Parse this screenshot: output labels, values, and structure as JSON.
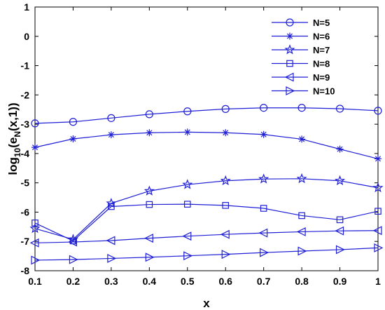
{
  "chart_data": {
    "type": "line",
    "xlabel": "x",
    "ylabel_parts": [
      "log",
      "10",
      "(e",
      "N",
      "(x,1))"
    ],
    "xlim": [
      0.1,
      1
    ],
    "ylim": [
      -8,
      1
    ],
    "x_ticks": [
      "0.1",
      "0.2",
      "0.3",
      "0.4",
      "0.5",
      "0.6",
      "0.7",
      "0.8",
      "0.9",
      "1"
    ],
    "y_ticks": [
      "1",
      "0",
      "-1",
      "-2",
      "-3",
      "-4",
      "-5",
      "-6",
      "-7",
      "-8"
    ],
    "grid": false,
    "legend_position": "top-right",
    "line_color": "#1f1fd6",
    "x": [
      0.1,
      0.2,
      0.3,
      0.4,
      0.5,
      0.6,
      0.7,
      0.8,
      0.9,
      1.0
    ],
    "series": [
      {
        "name": "N=5",
        "marker": "circle",
        "values": [
          -2.97,
          -2.92,
          -2.79,
          -2.66,
          -2.56,
          -2.48,
          -2.44,
          -2.44,
          -2.47,
          -2.54
        ]
      },
      {
        "name": "N=6",
        "marker": "asterisk",
        "values": [
          -3.79,
          -3.5,
          -3.36,
          -3.29,
          -3.27,
          -3.29,
          -3.35,
          -3.51,
          -3.85,
          -4.18
        ]
      },
      {
        "name": "N=7",
        "marker": "star",
        "values": [
          -6.56,
          -6.93,
          -5.7,
          -5.28,
          -5.06,
          -4.93,
          -4.87,
          -4.86,
          -4.93,
          -5.17
        ]
      },
      {
        "name": "N=8",
        "marker": "square",
        "values": [
          -6.37,
          -6.98,
          -5.81,
          -5.74,
          -5.73,
          -5.77,
          -5.87,
          -6.12,
          -6.26,
          -5.97
        ]
      },
      {
        "name": "N=9",
        "marker": "triangle-left",
        "values": [
          -7.05,
          -7.02,
          -6.97,
          -6.89,
          -6.82,
          -6.76,
          -6.71,
          -6.67,
          -6.64,
          -6.63
        ]
      },
      {
        "name": "N=10",
        "marker": "triangle-right",
        "values": [
          -7.64,
          -7.62,
          -7.58,
          -7.54,
          -7.49,
          -7.44,
          -7.38,
          -7.33,
          -7.28,
          -7.22
        ]
      }
    ]
  }
}
